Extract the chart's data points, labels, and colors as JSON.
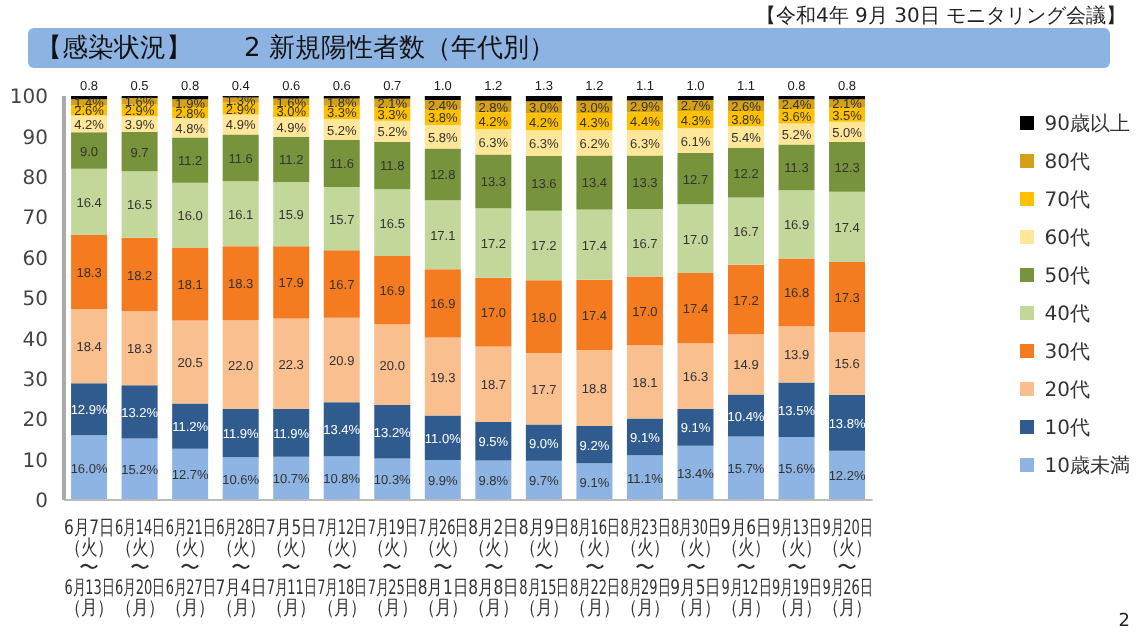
{
  "chart_data": {
    "type": "bar",
    "stacked": true,
    "title": "【感染状況】　　2 新規陽性者数（年代別）",
    "annotations": [
      "【令和4年 9月 30日 モニタリング会議】",
      "2"
    ],
    "categories": [
      "6月7日（火）〜6月13日（月）",
      "6月14日（火）〜6月20日（月）",
      "6月21日（火）〜6月27日（月）",
      "6月28日（火）〜7月4日（月）",
      "7月5日（火）〜7月11日（月）",
      "7月12日（火）〜7月18日（月）",
      "7月19日（火）〜7月25日（月）",
      "7月26日（火）〜8月1日（月）",
      "8月2日（火）〜8月8日（月）",
      "8月9日（火）〜8月15日（月）",
      "8月16日（火）〜8月22日（月）",
      "8月23日（火）〜8月29日（月）",
      "8月30日（火）〜9月5日（月）",
      "9月6日（火）〜9月12日（月）",
      "9月13日（火）〜9月19日（月）",
      "9月20日（火）〜9月26日（月）"
    ],
    "series": [
      {
        "name": "10歳未満",
        "color": "#8db4e2",
        "values": [
          16.0,
          15.2,
          12.7,
          10.6,
          10.7,
          10.8,
          10.3,
          9.9,
          9.8,
          9.7,
          9.1,
          11.1,
          13.4,
          15.7,
          15.6,
          12.2
        ],
        "value_labels": [
          "16.0%",
          "15.2%",
          "12.7%",
          "10.6%",
          "10.7%",
          "10.8%",
          "10.3%",
          "9.9%",
          "9.8%",
          "9.7%",
          "9.1%",
          "11.1%",
          "13.4%",
          "15.7%",
          "15.6%",
          "12.2%"
        ]
      },
      {
        "name": "10代",
        "color": "#2f5b8f",
        "values": [
          12.9,
          13.2,
          11.2,
          11.9,
          11.9,
          13.4,
          13.2,
          11.0,
          9.5,
          9.0,
          9.2,
          9.1,
          9.1,
          10.4,
          13.5,
          13.8
        ],
        "value_labels": [
          "12.9%",
          "13.2%",
          "11.2%",
          "11.9%",
          "11.9%",
          "13.4%",
          "13.2%",
          "11.0%",
          "9.5%",
          "9.0%",
          "9.2%",
          "9.1%",
          "9.1%",
          "10.4%",
          "13.5%",
          "13.8%"
        ]
      },
      {
        "name": "20代",
        "color": "#fabf8f",
        "values": [
          18.4,
          18.3,
          20.5,
          22.0,
          22.3,
          20.9,
          20.0,
          19.3,
          18.7,
          17.7,
          18.8,
          18.1,
          16.3,
          14.9,
          13.9,
          15.6
        ],
        "value_labels": [
          "18.4",
          "18.3",
          "20.5",
          "22.0",
          "22.3",
          "20.9",
          "20.0",
          "19.3",
          "18.7",
          "17.7",
          "18.8",
          "18.1",
          "16.3",
          "14.9",
          "13.9",
          "15.6"
        ]
      },
      {
        "name": "30代",
        "color": "#f47b20",
        "values": [
          18.3,
          18.2,
          18.1,
          18.3,
          17.9,
          16.7,
          16.9,
          16.9,
          17.0,
          18.0,
          17.4,
          17.0,
          17.4,
          17.2,
          16.8,
          17.3
        ],
        "value_labels": [
          "18.3",
          "18.2",
          "18.1",
          "18.3",
          "17.9",
          "16.7",
          "16.9",
          "16.9",
          "17.0",
          "18.0",
          "17.4",
          "17.0",
          "17.4",
          "17.2",
          "16.8",
          "17.3"
        ]
      },
      {
        "name": "40代",
        "color": "#c4d79b",
        "values": [
          16.4,
          16.5,
          16.0,
          16.1,
          15.9,
          15.7,
          16.5,
          17.1,
          17.2,
          17.2,
          17.4,
          16.7,
          17.0,
          16.7,
          16.9,
          17.4
        ],
        "value_labels": [
          "16.4",
          "16.5",
          "16.0",
          "16.1",
          "15.9",
          "15.7",
          "16.5",
          "17.1",
          "17.2",
          "17.2",
          "17.4",
          "16.7",
          "17.0",
          "16.7",
          "16.9",
          "17.4"
        ]
      },
      {
        "name": "50代",
        "color": "#77933c",
        "values": [
          9.0,
          9.7,
          11.2,
          11.6,
          11.2,
          11.6,
          11.8,
          12.8,
          13.3,
          13.6,
          13.4,
          13.3,
          12.7,
          12.2,
          11.3,
          12.3
        ],
        "value_labels": [
          "9.0",
          "9.7",
          "11.2",
          "11.6",
          "11.2",
          "11.6",
          "11.8",
          "12.8",
          "13.3",
          "13.6",
          "13.4",
          "13.3",
          "12.7",
          "12.2",
          "11.3",
          "12.3"
        ]
      },
      {
        "name": "60代",
        "color": "#ffe699",
        "values": [
          4.2,
          3.9,
          4.8,
          4.9,
          4.9,
          5.2,
          5.2,
          5.8,
          6.3,
          6.3,
          6.2,
          6.3,
          6.1,
          5.4,
          5.2,
          5.0
        ],
        "value_labels": [
          "4.2%",
          "3.9%",
          "4.8%",
          "4.9%",
          "4.9%",
          "5.2%",
          "5.2%",
          "5.8%",
          "6.3%",
          "6.3%",
          "6.2%",
          "6.3%",
          "6.1%",
          "5.4%",
          "5.2%",
          "5.0%"
        ]
      },
      {
        "name": "70代",
        "color": "#ffc000",
        "values": [
          2.6,
          2.9,
          2.8,
          2.9,
          3.0,
          3.3,
          3.3,
          3.8,
          4.2,
          4.2,
          4.3,
          4.4,
          4.3,
          3.8,
          3.6,
          3.5
        ],
        "value_labels": [
          "2.6%",
          "2.9%",
          "2.8%",
          "2.9%",
          "3.0%",
          "3.3%",
          "3.3%",
          "3.8%",
          "4.2%",
          "4.2%",
          "4.3%",
          "4.4%",
          "4.3%",
          "3.8%",
          "3.6%",
          "3.5%"
        ]
      },
      {
        "name": "80代",
        "color": "#d4a017",
        "values": [
          1.4,
          1.6,
          1.9,
          1.3,
          1.6,
          1.8,
          2.1,
          2.4,
          2.8,
          3.0,
          3.0,
          2.9,
          2.7,
          2.6,
          2.4,
          2.1
        ],
        "value_labels": [
          "1.4%",
          "1.6%",
          "1.9%",
          "1.3%",
          "1.6%",
          "1.8%",
          "2.1%",
          "2.4%",
          "2.8%",
          "3.0%",
          "3.0%",
          "2.9%",
          "2.7%",
          "2.6%",
          "2.4%",
          "2.1%"
        ]
      },
      {
        "name": "90歳以上",
        "color": "#000000",
        "values": [
          0.8,
          0.5,
          0.8,
          0.4,
          0.6,
          0.6,
          0.7,
          1.0,
          1.2,
          1.3,
          1.2,
          1.1,
          1.0,
          1.1,
          0.8,
          0.8
        ],
        "value_labels": [
          "0.8",
          "0.5",
          "0.8",
          "0.4",
          "0.6",
          "0.6",
          "0.7",
          "1.0",
          "1.2",
          "1.3",
          "1.2",
          "1.1",
          "1.0",
          "1.1",
          "0.8",
          "0.8"
        ]
      }
    ],
    "ylim": [
      0,
      100
    ],
    "yticks": [
      0,
      10,
      20,
      30,
      40,
      50,
      60,
      70,
      80,
      90,
      100
    ],
    "legend": "right"
  }
}
